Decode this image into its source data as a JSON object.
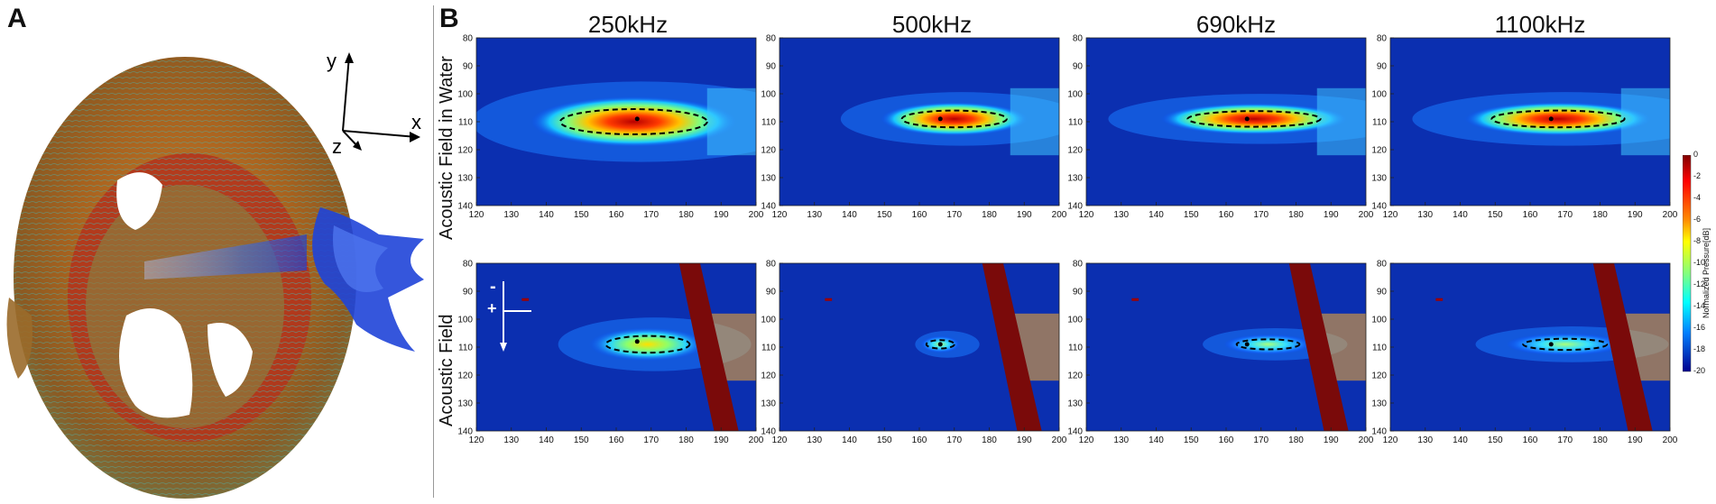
{
  "panel_a": {
    "label": "A",
    "axes": {
      "x": "x",
      "y": "y",
      "z": "z"
    }
  },
  "panel_b": {
    "label": "B",
    "frequencies": [
      "250kHz",
      "500kHz",
      "690kHz",
      "1100kHz"
    ],
    "row_labels": [
      "Acoustic Field in Water",
      "Acoustic Field"
    ],
    "x_ticks": [
      "120",
      "130",
      "140",
      "150",
      "160",
      "170",
      "180",
      "190",
      "200"
    ],
    "y_ticks": [
      "80",
      "90",
      "100",
      "110",
      "120",
      "130",
      "140"
    ],
    "colorbar": {
      "label": "Normalized Pressure[dB]",
      "ticks": [
        "0",
        "-2",
        "-4",
        "-6",
        "-8",
        "-10",
        "-12",
        "-14",
        "-16",
        "-18",
        "-20"
      ]
    },
    "direction_marks": {
      "minus": "-",
      "plus": "+"
    }
  },
  "chart_data": [
    {
      "type": "heatmap",
      "title": "250kHz",
      "ylabel": "Acoustic Field in Water",
      "xlim": [
        120,
        200
      ],
      "ylim": [
        140,
        80
      ],
      "focus": {
        "x": 166,
        "y": 109
      },
      "ellipse": {
        "cx": 165,
        "cy": 110,
        "rx": 21,
        "ry": 4.5
      }
    },
    {
      "type": "heatmap",
      "title": "500kHz",
      "xlim": [
        120,
        200
      ],
      "ylim": [
        140,
        80
      ],
      "focus": {
        "x": 166,
        "y": 109
      },
      "ellipse": {
        "cx": 170,
        "cy": 109,
        "rx": 15,
        "ry": 3
      }
    },
    {
      "type": "heatmap",
      "title": "690kHz",
      "xlim": [
        120,
        200
      ],
      "ylim": [
        140,
        80
      ],
      "focus": {
        "x": 166,
        "y": 109
      },
      "ellipse": {
        "cx": 168,
        "cy": 109,
        "rx": 19,
        "ry": 2.8
      }
    },
    {
      "type": "heatmap",
      "title": "1100kHz",
      "xlim": [
        120,
        200
      ],
      "ylim": [
        140,
        80
      ],
      "focus": {
        "x": 166,
        "y": 109
      },
      "ellipse": {
        "cx": 168,
        "cy": 109,
        "rx": 19,
        "ry": 3
      }
    },
    {
      "type": "heatmap",
      "title": "250kHz",
      "ylabel": "Acoustic Field",
      "xlim": [
        120,
        200
      ],
      "ylim": [
        140,
        80
      ],
      "focus": {
        "x": 166,
        "y": 108
      },
      "ellipse": {
        "cx": 169,
        "cy": 109,
        "rx": 12,
        "ry": 3
      }
    },
    {
      "type": "heatmap",
      "title": "500kHz",
      "xlim": [
        120,
        200
      ],
      "ylim": [
        140,
        80
      ],
      "focus": {
        "x": 166,
        "y": 109
      },
      "ellipse": {
        "cx": 166,
        "cy": 109,
        "rx": 4,
        "ry": 1.5
      }
    },
    {
      "type": "heatmap",
      "title": "690kHz",
      "xlim": [
        120,
        200
      ],
      "ylim": [
        140,
        80
      ],
      "focus": {
        "x": 166,
        "y": 109
      },
      "ellipse": {
        "cx": 172,
        "cy": 109,
        "rx": 9,
        "ry": 1.8
      }
    },
    {
      "type": "heatmap",
      "title": "1100kHz",
      "xlim": [
        120,
        200
      ],
      "ylim": [
        140,
        80
      ],
      "focus": {
        "x": 166,
        "y": 109
      },
      "ellipse": {
        "cx": 170,
        "cy": 109,
        "rx": 12,
        "ry": 2
      }
    }
  ]
}
